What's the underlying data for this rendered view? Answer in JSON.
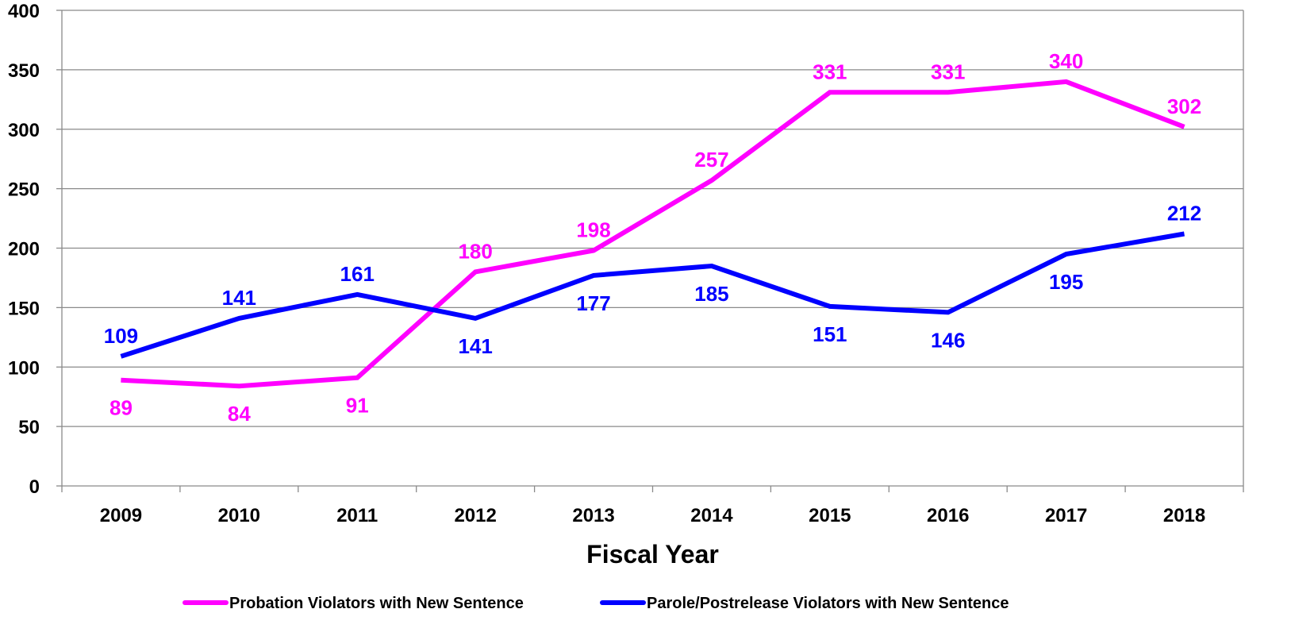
{
  "chart_data": {
    "type": "line",
    "xlabel": "Fiscal Year",
    "ylabel": "",
    "ylim": [
      0,
      400
    ],
    "yticks": [
      0,
      50,
      100,
      150,
      200,
      250,
      300,
      350,
      400
    ],
    "categories": [
      "2009",
      "2010",
      "2011",
      "2012",
      "2013",
      "2014",
      "2015",
      "2016",
      "2017",
      "2018"
    ],
    "grid": "horizontal",
    "legend_position": "bottom",
    "series": [
      {
        "name": "Probation Violators with New Sentence",
        "color": "#ff00ff",
        "values": [
          89,
          84,
          91,
          180,
          198,
          257,
          331,
          331,
          340,
          302
        ],
        "label_side": [
          "below",
          "below",
          "below",
          "above",
          "above",
          "above",
          "above",
          "above",
          "above",
          "above"
        ]
      },
      {
        "name": "Parole/Postrelease Violators with New Sentence",
        "color": "#0000ff",
        "values": [
          109,
          141,
          161,
          141,
          177,
          185,
          151,
          146,
          195,
          212
        ],
        "label_side": [
          "above",
          "above",
          "above",
          "below",
          "below",
          "below",
          "below",
          "below",
          "below",
          "above"
        ]
      }
    ]
  }
}
